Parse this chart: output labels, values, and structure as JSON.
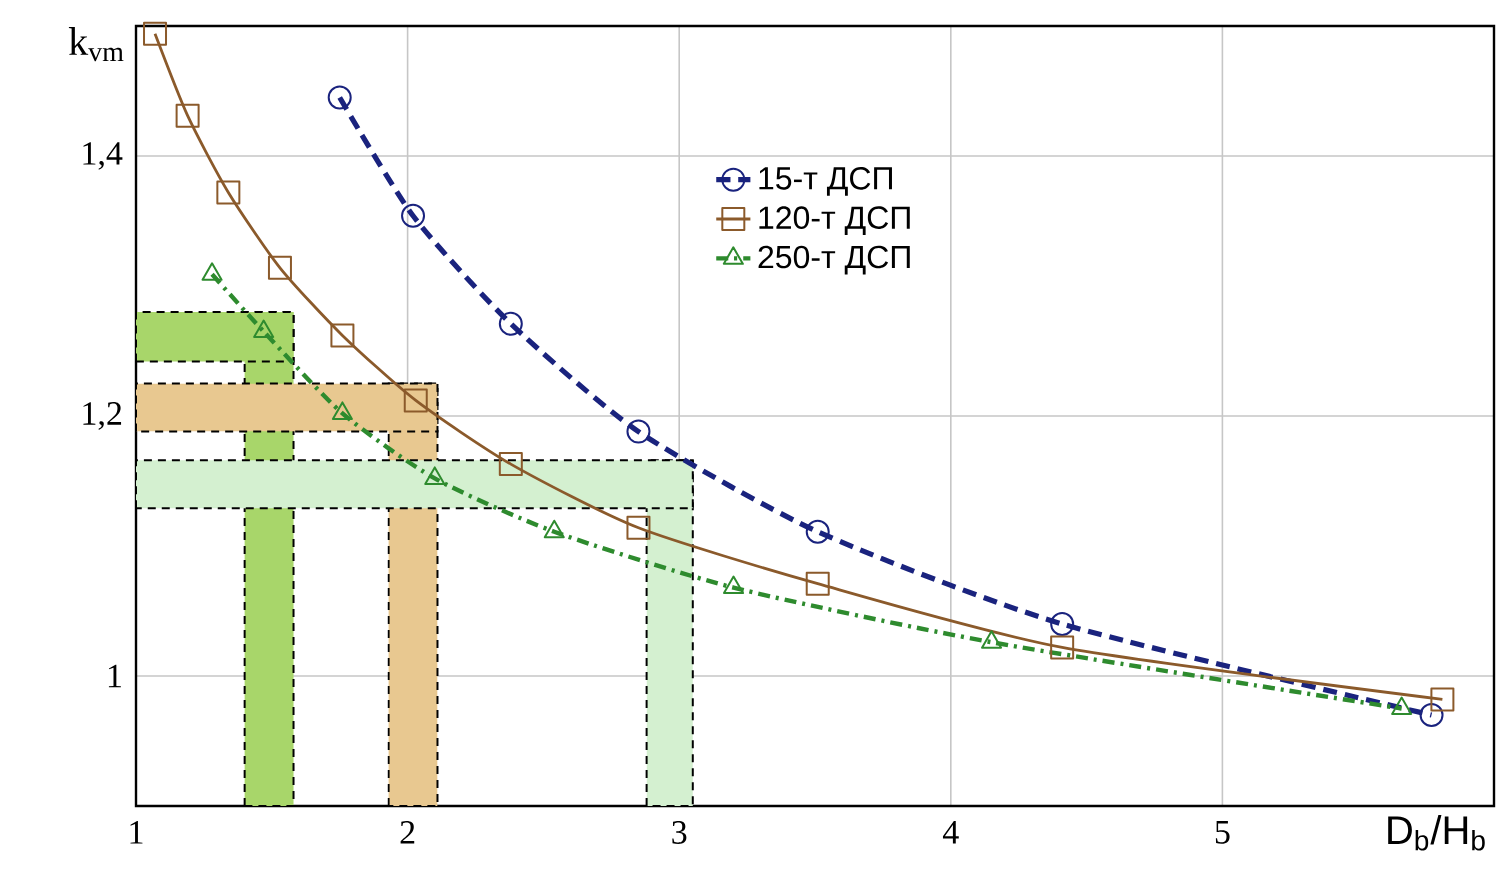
{
  "chart_data": {
    "type": "line",
    "xlabel": "D$_{b}$/H$_{b}$",
    "ylabel": "k$_{vm}$",
    "xlim": [
      1,
      6
    ],
    "ylim": [
      0.9,
      1.5
    ],
    "xticks": [
      1,
      2,
      3,
      4,
      5
    ],
    "yticks": [
      1,
      {
        "value": 1.2,
        "label": "1,2"
      },
      {
        "value": 1.4,
        "label": "1,4"
      }
    ],
    "grid": true,
    "legend": "top",
    "series": [
      {
        "name": "15-т ДСП",
        "color": "#1a237e",
        "marker": "circle",
        "line_style": "dashed",
        "x": [
          1.75,
          2.02,
          2.38,
          2.85,
          3.51,
          4.41,
          5.77
        ],
        "values": [
          1.445,
          1.354,
          1.271,
          1.188,
          1.111,
          1.04,
          0.97
        ]
      },
      {
        "name": "120-т ДСП",
        "color": "#8b5a2b",
        "marker": "square",
        "line_style": "solid",
        "x": [
          1.07,
          1.19,
          1.34,
          1.53,
          1.76,
          2.03,
          2.38,
          2.85,
          3.51,
          4.41,
          5.81
        ],
        "values": [
          1.494,
          1.431,
          1.372,
          1.314,
          1.262,
          1.212,
          1.163,
          1.114,
          1.071,
          1.022,
          0.982
        ]
      },
      {
        "name": "250-т ДСП",
        "color": "#2e8b2e",
        "marker": "triangle",
        "line_style": "dashed",
        "x": [
          1.28,
          1.47,
          1.76,
          2.1,
          2.54,
          3.2,
          4.15,
          5.66
        ],
        "values": [
          1.309,
          1.265,
          1.202,
          1.152,
          1.111,
          1.068,
          1.026,
          0.975
        ]
      }
    ],
    "bands": [
      {
        "axis": "x",
        "from": 1.4,
        "to": 1.58,
        "color": "#a8d66a"
      },
      {
        "axis": "y",
        "from": 1.242,
        "to": 1.28,
        "color": "#a8d66a"
      },
      {
        "axis": "x",
        "from": 1.93,
        "to": 2.11,
        "color": "#e8c890"
      },
      {
        "axis": "y",
        "from": 1.188,
        "to": 1.225,
        "color": "#e8c890"
      },
      {
        "axis": "x",
        "from": 2.88,
        "to": 3.05,
        "color": "#d4f0d0"
      },
      {
        "axis": "y",
        "from": 1.129,
        "to": 1.166,
        "color": "#d4f0d0"
      }
    ]
  }
}
